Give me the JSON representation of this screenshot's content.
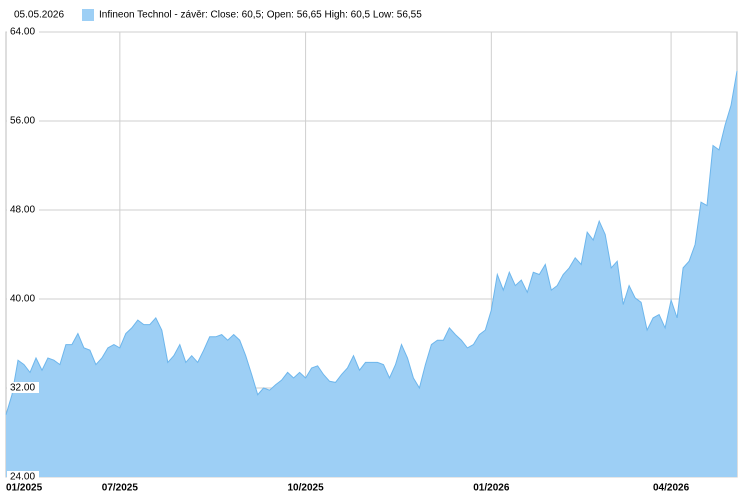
{
  "chart_data": {
    "type": "area",
    "date": "05.05.2026",
    "series": [
      {
        "name": "Infineon Technol - závěr: Close: 60,5; Open: 56,65 High: 60,5 Low: 56,55",
        "color": "#9dcff5",
        "values": [
          29.6,
          31.4,
          34.5,
          34.1,
          33.4,
          34.7,
          33.6,
          34.7,
          34.5,
          34.1,
          35.9,
          35.9,
          36.9,
          35.6,
          35.4,
          34.1,
          34.7,
          35.6,
          35.9,
          35.6,
          36.9,
          37.4,
          38.1,
          37.7,
          37.7,
          38.3,
          37.2,
          34.3,
          34.9,
          35.9,
          34.3,
          34.9,
          34.3,
          35.4,
          36.6,
          36.6,
          36.8,
          36.3,
          36.8,
          36.3,
          34.9,
          33.2,
          31.4,
          32.0,
          31.8,
          32.3,
          32.7,
          33.4,
          32.9,
          33.4,
          32.9,
          33.8,
          34.0,
          33.2,
          32.6,
          32.5,
          33.2,
          33.8,
          34.9,
          33.6,
          34.3,
          34.3,
          34.3,
          34.1,
          32.9,
          34.1,
          35.9,
          34.7,
          32.9,
          32.0,
          34.1,
          35.9,
          36.3,
          36.3,
          37.4,
          36.8,
          36.3,
          35.6,
          35.9,
          36.8,
          37.2,
          39.0,
          42.2,
          40.8,
          42.4,
          41.2,
          41.7,
          40.6,
          42.4,
          42.2,
          43.1,
          40.8,
          41.2,
          42.2,
          42.8,
          43.7,
          43.1,
          46.0,
          45.3,
          47.0,
          45.8,
          42.8,
          43.4,
          39.5,
          41.2,
          40.1,
          39.7,
          37.2,
          38.3,
          38.6,
          37.4,
          39.9,
          38.3,
          42.8,
          43.4,
          44.9,
          48.7,
          48.4,
          53.8,
          53.4,
          55.6,
          57.4,
          60.5
        ]
      }
    ],
    "categories": [
      "01/2025",
      null,
      null,
      null,
      null,
      null,
      null,
      null,
      null,
      null,
      null,
      null,
      null,
      null,
      null,
      null,
      null,
      null,
      null,
      "07/2025",
      null,
      null,
      null,
      null,
      null,
      null,
      null,
      null,
      null,
      null,
      null,
      null,
      null,
      null,
      null,
      null,
      null,
      null,
      null,
      null,
      null,
      null,
      null,
      null,
      null,
      null,
      null,
      null,
      null,
      null,
      "10/2025",
      null,
      null,
      null,
      null,
      null,
      null,
      null,
      null,
      null,
      null,
      null,
      null,
      null,
      null,
      null,
      null,
      null,
      null,
      null,
      null,
      null,
      null,
      null,
      null,
      null,
      null,
      null,
      null,
      null,
      null,
      "01/2026",
      null,
      null,
      null,
      null,
      null,
      null,
      null,
      null,
      null,
      null,
      null,
      null,
      null,
      null,
      null,
      null,
      null,
      null,
      null,
      null,
      null,
      null,
      null,
      null,
      null,
      null,
      null,
      null,
      null,
      "04/2026",
      null,
      null,
      null,
      null,
      null,
      null,
      null,
      null,
      null,
      null,
      null
    ],
    "ylim": [
      24,
      64
    ],
    "yticks": [
      {
        "value": 24,
        "label": "24.00"
      },
      {
        "value": 32,
        "label": "32.00"
      },
      {
        "value": 40,
        "label": "40.00"
      },
      {
        "value": 48,
        "label": "48.00"
      },
      {
        "value": 56,
        "label": "56.00"
      },
      {
        "value": 64,
        "label": "64.00"
      }
    ],
    "grid": true
  }
}
